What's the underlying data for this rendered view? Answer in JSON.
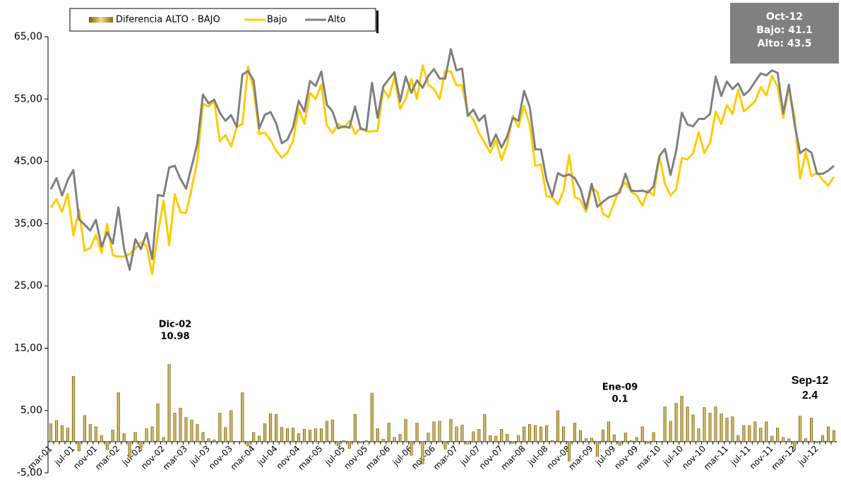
{
  "chart_data": {
    "type": "combo",
    "categories": [
      "mar-01",
      null,
      null,
      null,
      "jul-01",
      null,
      null,
      null,
      "nov-01",
      null,
      null,
      null,
      "mar-02",
      null,
      null,
      null,
      "jul-02",
      null,
      null,
      null,
      "nov-02",
      null,
      null,
      null,
      "mar-03",
      null,
      null,
      null,
      "jul-03",
      null,
      null,
      null,
      "nov-03",
      null,
      null,
      null,
      "mar-04",
      null,
      null,
      null,
      "jul-04",
      null,
      null,
      null,
      "nov-04",
      null,
      null,
      null,
      "mar-05",
      null,
      null,
      null,
      "jul-05",
      null,
      null,
      null,
      "nov-05",
      null,
      null,
      null,
      "mar-06",
      null,
      null,
      null,
      "jul-06",
      null,
      null,
      null,
      "nov-06",
      null,
      null,
      null,
      "mar-07",
      null,
      null,
      null,
      "jul-07",
      null,
      null,
      null,
      "nov-07",
      null,
      null,
      null,
      "mar-08",
      null,
      null,
      null,
      "jul-08",
      null,
      null,
      null,
      "nov-08",
      null,
      null,
      null,
      "mar-09",
      null,
      null,
      null,
      "jul-09",
      null,
      null,
      null,
      "nov-09",
      null,
      null,
      null,
      "mar-10",
      null,
      null,
      null,
      "jul-10",
      null,
      null,
      null,
      "nov-10",
      null,
      null,
      null,
      "mar-11",
      null,
      null,
      null,
      "jul-11",
      null,
      null,
      null,
      "nov-11",
      null,
      null,
      null,
      "mar-12",
      null,
      null,
      null,
      "jul-12",
      null,
      null,
      null
    ],
    "series": [
      {
        "name": "Diferencia ALTO - BAJO",
        "type": "bar",
        "color": "#c9a227",
        "values": [
          2.9,
          3.4,
          2.6,
          2.2,
          10.5,
          -1.5,
          4.2,
          2.8,
          2.4,
          1.0,
          -1.3,
          1.9,
          7.9,
          1.3,
          -2.5,
          1.5,
          -1.1,
          2.1,
          2.4,
          6.1,
          0.7,
          12.4,
          4.6,
          5.4,
          3.9,
          3.5,
          2.8,
          1.5,
          0.5,
          0.3,
          4.6,
          2.3,
          5,
          0,
          7.9,
          -0.7,
          1.5,
          0.9,
          2.9,
          4.5,
          4.4,
          2.3,
          2.1,
          2.2,
          1.3,
          2,
          1.9,
          2.1,
          2.1,
          3.3,
          3.5,
          -0.7,
          0.2,
          -1.1,
          4.4,
          -0.2,
          0.2,
          7.8,
          2.1,
          0.4,
          3,
          0.7,
          1.2,
          3.6,
          -2.2,
          3,
          -3.6,
          1.4,
          3.2,
          3.3,
          -1.2,
          3.6,
          2.4,
          2.7,
          -0.4,
          1.6,
          2,
          4.4,
          1,
          0.9,
          2,
          1.2,
          -0.3,
          1,
          2.4,
          2.8,
          2.6,
          2.4,
          2.6,
          0.2,
          5,
          2.4,
          -3.1,
          3,
          1.8,
          0.5,
          0.6,
          -2.4,
          1.9,
          3.2,
          1.1,
          -0.6,
          1.4,
          0.2,
          0.7,
          2.4,
          -0.3,
          1.5,
          0,
          5.6,
          3.3,
          6.2,
          7.3,
          5.6,
          4.3,
          2.1,
          5.5,
          4.6,
          5.6,
          4.5,
          3.8,
          4,
          1,
          2.6,
          2.6,
          3.2,
          2.2,
          3.2,
          0.9,
          2.2,
          0.7,
          0.5,
          -1.2,
          4.1,
          0.5,
          3.8,
          -0.2,
          1,
          2.4,
          1.8
        ]
      },
      {
        "name": "Bajo",
        "type": "line",
        "color": "#ffcc00",
        "values": [
          37.6,
          38.9,
          36.9,
          39.8,
          33.1,
          37.2,
          30.6,
          31.1,
          33.2,
          30.3,
          34.9,
          29.9,
          29.7,
          29.7,
          30.1,
          31,
          32,
          31.4,
          26.9,
          33.5,
          38.7,
          31.6,
          39.7,
          36.8,
          36.7,
          40.7,
          45,
          54.2,
          53.8,
          54.6,
          48.2,
          49.2,
          47.4,
          50.5,
          51,
          60.2,
          56.5,
          49.4,
          49.6,
          48.4,
          46.7,
          45.6,
          46.4,
          48.3,
          53.4,
          51,
          56,
          55,
          57.3,
          50.8,
          49.5,
          51,
          50.4,
          51.5,
          49.4,
          50.4,
          49.8,
          49.8,
          49.9,
          56.6,
          55.2,
          58.6,
          53.4,
          55,
          58.2,
          55,
          60.4,
          57.3,
          56.6,
          55,
          59.5,
          59.4,
          57.2,
          57.2,
          52.7,
          51.7,
          49.5,
          48,
          46.4,
          48.4,
          45.2,
          47.8,
          52.3,
          50.5,
          53.9,
          50.9,
          44.3,
          44.5,
          39.4,
          39.2,
          38.1,
          40.2,
          46,
          39.3,
          38.8,
          36.9,
          40.8,
          40.1,
          36.6,
          36,
          38.4,
          40.6,
          41.6,
          40.1,
          39.5,
          37.9,
          40.3,
          39.5,
          45.8,
          41.4,
          39.5,
          40.5,
          45.5,
          45.3,
          46.3,
          49.7,
          46.3,
          48,
          53,
          51,
          54,
          52.6,
          56.5,
          53,
          53.8,
          54.6,
          56.9,
          55.6,
          58.7,
          57,
          52,
          56.8,
          52.2,
          42.2,
          46.5,
          42.6,
          43.2,
          42,
          41.1,
          42.5
        ]
      },
      {
        "name": "Alto",
        "type": "line",
        "color": "#808080",
        "values": [
          40.5,
          42.3,
          39.5,
          42,
          43.6,
          35.7,
          34.8,
          33.9,
          35.6,
          31.3,
          33.6,
          31.8,
          37.6,
          31,
          27.6,
          32.5,
          30.9,
          33.5,
          29.3,
          39.6,
          39.4,
          44,
          44.3,
          42.2,
          40.6,
          44.2,
          47.8,
          55.7,
          54.3,
          54.9,
          52.8,
          51.5,
          52.4,
          50.5,
          58.9,
          59.5,
          58,
          50.3,
          52.5,
          52.9,
          51.1,
          47.9,
          48.5,
          50.5,
          54.7,
          53,
          57.9,
          57.1,
          59.4,
          54.1,
          53,
          50.3,
          50.6,
          50.4,
          53.8,
          50.2,
          50,
          57.6,
          52,
          57,
          58.2,
          59.3,
          54.6,
          58.6,
          56,
          58,
          56.8,
          58.7,
          59.8,
          58.3,
          58.3,
          63,
          59.6,
          59.9,
          52.3,
          53.3,
          51.5,
          52.4,
          47.4,
          49.3,
          47.2,
          49,
          52,
          51.5,
          56.3,
          53.7,
          46.9,
          46.9,
          42,
          39.4,
          43.1,
          42.6,
          42.9,
          42.3,
          40.6,
          37.4,
          41.4,
          37.7,
          38.5,
          39.2,
          39.5,
          40,
          43,
          40.3,
          40.2,
          40.3,
          40,
          41,
          45.8,
          47,
          42.8,
          46.7,
          52.8,
          50.9,
          50.6,
          51.8,
          51.8,
          52.6,
          58.6,
          55.5,
          57.8,
          56.6,
          57.5,
          55.6,
          56.4,
          57.8,
          59.1,
          58.8,
          59.6,
          59.2,
          52.7,
          57.3,
          51,
          46.3,
          47,
          46.4,
          43,
          43,
          43.5,
          44.3
        ]
      }
    ],
    "ylim": [
      -5,
      65
    ],
    "yticks": [
      {
        "value": -5,
        "label": "-5,00"
      },
      {
        "value": 5,
        "label": "5,00"
      },
      {
        "value": 15,
        "label": "15,00"
      },
      {
        "value": 25,
        "label": "25,00"
      },
      {
        "value": 35,
        "label": "35,00"
      },
      {
        "value": 45,
        "label": "45,00"
      },
      {
        "value": 55,
        "label": "55,00"
      },
      {
        "value": 65,
        "label": "65,00"
      }
    ],
    "grid": false,
    "legend": "top-left",
    "annotations": [
      {
        "lines": [
          "Dic-02",
          "10.98"
        ]
      },
      {
        "lines": [
          "Ene-09",
          "0.1"
        ]
      },
      {
        "lines": [
          "Sep-12",
          "2.4"
        ]
      },
      {
        "lines": [
          "Oct-12",
          "Bajo: 41.1",
          "Alto: 43.5"
        ]
      }
    ]
  }
}
